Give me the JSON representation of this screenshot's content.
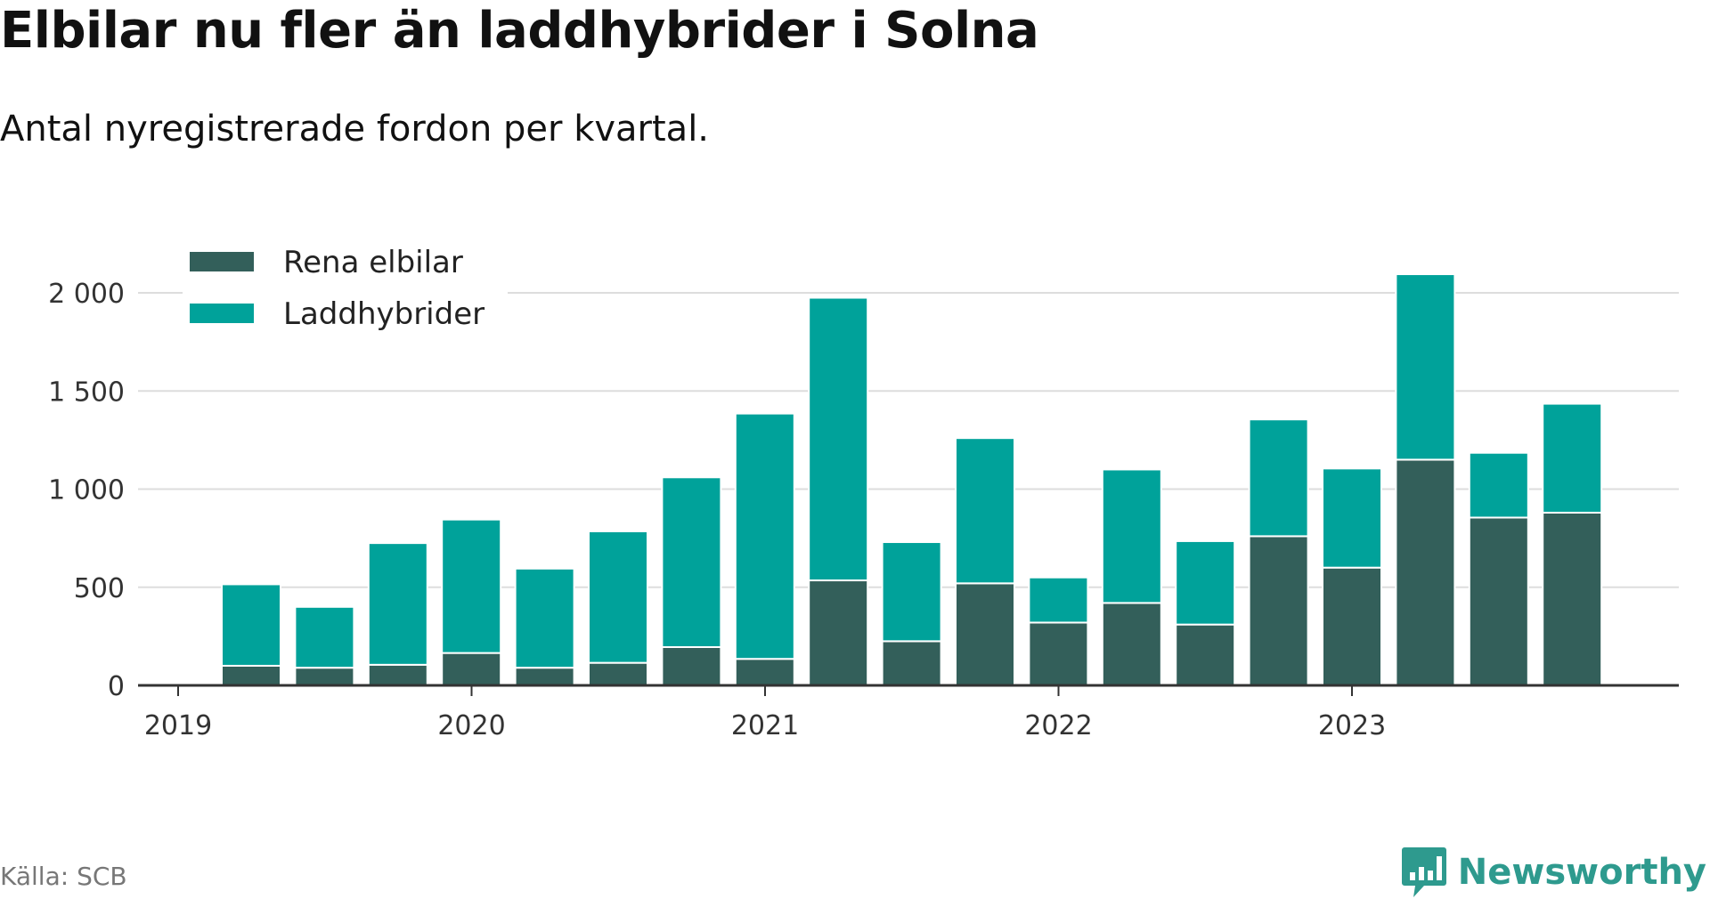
{
  "header": {
    "title": "Elbilar nu fler än laddhybrider i Solna",
    "subtitle": "Antal nyregistrerade fordon per kvartal."
  },
  "footer": {
    "source": "Källa: SCB",
    "brand": "Newsworthy",
    "brand_icon": "bar-chart-speech-bubble-icon"
  },
  "colors": {
    "elbilar": "#335f5a",
    "laddhybrider": "#00a29a",
    "grid": "#dddddd",
    "axis": "#333333",
    "brand": "#2e9a8e"
  },
  "chart_data": {
    "type": "bar",
    "stacked": true,
    "x_ticks": [
      "2019",
      "2020",
      "2021",
      "2022",
      "2023"
    ],
    "y_ticks": [
      "0",
      "500",
      "1 000",
      "1 500",
      "2 000"
    ],
    "ylim": [
      0,
      2200
    ],
    "grid": true,
    "legend_position": "top-left",
    "categories": [
      "2019 Q2",
      "2019 Q3",
      "2019 Q4",
      "2020 Q1",
      "2020 Q2",
      "2020 Q3",
      "2020 Q4",
      "2021 Q1",
      "2021 Q2",
      "2021 Q3",
      "2021 Q4",
      "2022 Q1",
      "2022 Q2",
      "2022 Q3",
      "2022 Q4",
      "2023 Q1",
      "2023 Q2",
      "2023 Q3",
      "2023 Q4"
    ],
    "series": [
      {
        "name": "Rena elbilar",
        "values": [
          100,
          90,
          105,
          165,
          90,
          115,
          195,
          135,
          535,
          225,
          520,
          320,
          420,
          310,
          760,
          600,
          1150,
          855,
          880
        ]
      },
      {
        "name": "Laddhybrider",
        "values": [
          415,
          310,
          620,
          680,
          505,
          670,
          865,
          1250,
          1440,
          505,
          740,
          230,
          680,
          425,
          595,
          505,
          945,
          330,
          555
        ]
      }
    ]
  }
}
